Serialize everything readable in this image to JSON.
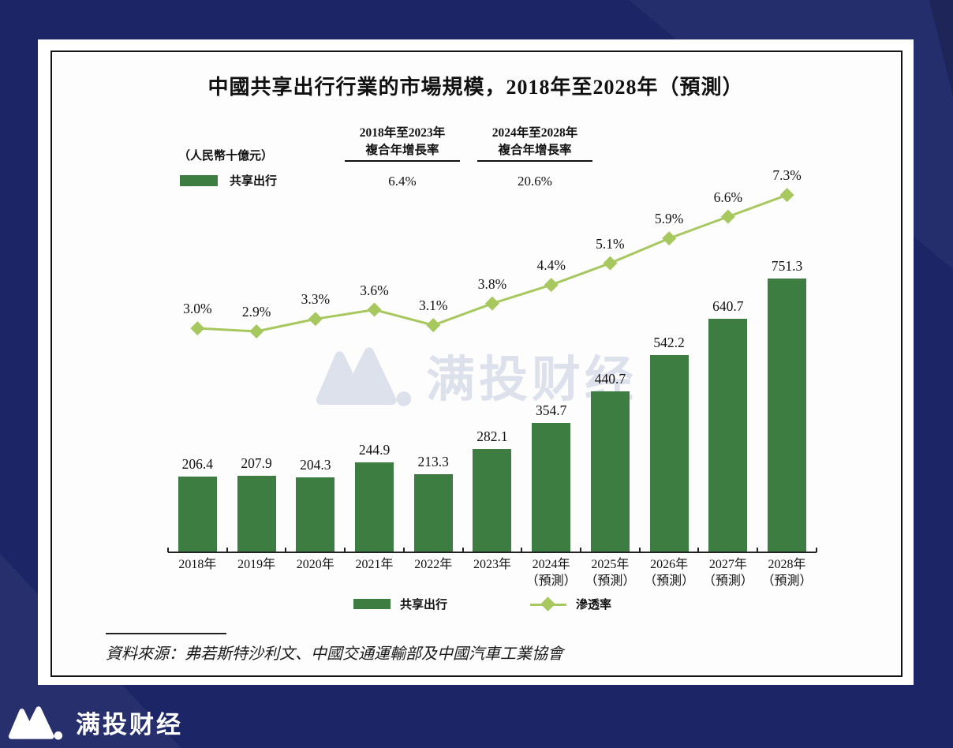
{
  "page": {
    "background_color": "#1c2566",
    "watermark_text": "满投财经",
    "footer_brand": "满投财经"
  },
  "chart": {
    "title": "中國共享出行行業的市場規模，2018年至2028年（預測）",
    "unit_label": "（人民幣十億元）",
    "top_legend_label": "共享出行",
    "cagr_columns": [
      {
        "period": "2018年至2023年",
        "metric": "複合年增長率",
        "value": "6.4%"
      },
      {
        "period": "2024年至2028年",
        "metric": "複合年增長率",
        "value": "20.6%"
      }
    ],
    "bottom_legend": {
      "bar_label": "共享出行",
      "line_label": "滲透率"
    },
    "source": "資料來源：弗若斯特沙利文、中國交通運輸部及中國汽車工業協會",
    "colors": {
      "bar": "#3e7d42",
      "line": "#a6c85e",
      "watermark": "#dde1ec",
      "axis": "#222222",
      "background": "#1c2566"
    }
  },
  "chart_data": {
    "type": "bar+line",
    "title": "中國共享出行行業的市場規模，2018年至2028年（預測）",
    "ylabel": "（人民幣十億元）",
    "grid": false,
    "legend_position": "bottom",
    "categories": [
      {
        "label": "2018年",
        "sublabel": ""
      },
      {
        "label": "2019年",
        "sublabel": ""
      },
      {
        "label": "2020年",
        "sublabel": ""
      },
      {
        "label": "2021年",
        "sublabel": ""
      },
      {
        "label": "2022年",
        "sublabel": ""
      },
      {
        "label": "2023年",
        "sublabel": ""
      },
      {
        "label": "2024年",
        "sublabel": "（預測）"
      },
      {
        "label": "2025年",
        "sublabel": "（預測）"
      },
      {
        "label": "2026年",
        "sublabel": "（預測）"
      },
      {
        "label": "2027年",
        "sublabel": "（預測）"
      },
      {
        "label": "2028年",
        "sublabel": "（預測）"
      }
    ],
    "series": [
      {
        "name": "共享出行",
        "type": "bar",
        "unit": "人民幣十億元",
        "values": [
          206.4,
          207.9,
          204.3,
          244.9,
          213.3,
          282.1,
          354.7,
          440.7,
          542.2,
          640.7,
          751.3
        ]
      },
      {
        "name": "滲透率",
        "type": "line",
        "unit": "%",
        "values": [
          3.0,
          2.9,
          3.3,
          3.6,
          3.1,
          3.8,
          4.4,
          5.1,
          5.9,
          6.6,
          7.3
        ]
      }
    ],
    "cagr": [
      {
        "period": "2018年至2023年",
        "value_pct": 6.4
      },
      {
        "period": "2024年至2028年",
        "value_pct": 20.6
      }
    ]
  }
}
